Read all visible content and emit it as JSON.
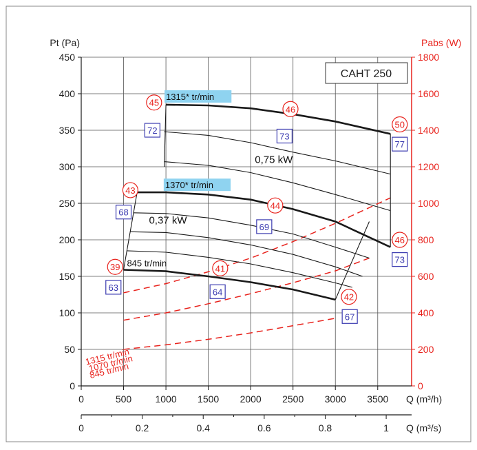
{
  "chart_data": {
    "type": "line",
    "title": "CAHT 250",
    "y_left": {
      "label": "Pt (Pa)",
      "range": [
        0,
        450
      ],
      "ticks": [
        0,
        50,
        100,
        150,
        200,
        250,
        300,
        350,
        400,
        450
      ]
    },
    "y_right": {
      "label": "Pabs (W)",
      "range": [
        0,
        1800
      ],
      "ticks": [
        0,
        200,
        400,
        600,
        800,
        1000,
        1200,
        1400,
        1600,
        1800
      ]
    },
    "x_top": {
      "label": "Q (m³/h)",
      "range": [
        0,
        3900
      ],
      "ticks": [
        0,
        500,
        1000,
        1500,
        2000,
        2500,
        3000,
        3500
      ]
    },
    "x_bottom": {
      "label": "Q (m³/s)",
      "ticks": [
        0,
        0.2,
        0.4,
        0.6,
        0.8,
        1
      ],
      "tick_labels": [
        "0",
        "0.2",
        "0.4",
        "0.6",
        "0.8",
        "1"
      ]
    },
    "grid": true,
    "colors": {
      "pressure": "#1a1a1a",
      "power": "#e8231d",
      "noise_box": "#3b3bb0",
      "speed_highlight": "#8fd3f0"
    },
    "pressure_series": [
      {
        "name": "1315* tr/min",
        "thick": true,
        "x": [
          1000,
          1500,
          2000,
          2500,
          3000,
          3650
        ],
        "y": [
          385,
          384,
          380,
          372,
          362,
          345
        ]
      },
      {
        "name": "",
        "thick": false,
        "x": [
          980,
          1500,
          2000,
          2500,
          3000,
          3650
        ],
        "y": [
          348,
          343,
          333,
          320,
          308,
          290
        ]
      },
      {
        "name": "",
        "thick": false,
        "x": [
          980,
          1500,
          2000,
          2500,
          3000,
          3650
        ],
        "y": [
          307,
          302,
          292,
          278,
          262,
          240
        ]
      },
      {
        "name": "1370* tr/min",
        "thick": true,
        "x": [
          660,
          1000,
          1500,
          2000,
          2500,
          3000,
          3650
        ],
        "y": [
          265,
          265,
          262,
          255,
          242,
          225,
          190
        ]
      },
      {
        "name": "",
        "thick": false,
        "x": [
          620,
          1000,
          1500,
          2000,
          2500,
          3000,
          3400
        ],
        "y": [
          237,
          236,
          230,
          220,
          208,
          190,
          175
        ]
      },
      {
        "name": "",
        "thick": false,
        "x": [
          580,
          1000,
          1500,
          2000,
          2500,
          3000,
          3320
        ],
        "y": [
          211,
          210,
          203,
          193,
          180,
          163,
          150
        ]
      },
      {
        "name": "",
        "thick": false,
        "x": [
          540,
          1000,
          1500,
          2000,
          2500,
          3000,
          3200
        ],
        "y": [
          185,
          183,
          176,
          167,
          155,
          141,
          135
        ]
      },
      {
        "name": "845 tr/min",
        "thick": true,
        "x": [
          500,
          1000,
          1500,
          2000,
          2500,
          3000
        ],
        "y": [
          159,
          157,
          150,
          142,
          132,
          118
        ]
      }
    ],
    "region_boundaries": [
      {
        "x": [
          980,
          1000
        ],
        "y": [
          300,
          385
        ]
      },
      {
        "x": [
          3650,
          3650
        ],
        "y": [
          190,
          345
        ]
      },
      {
        "x": [
          500,
          660
        ],
        "y": [
          159,
          265
        ]
      },
      {
        "x": [
          3000,
          3400
        ],
        "y": [
          118,
          225
        ]
      }
    ],
    "power_series": [
      {
        "name": "1315 tr/min",
        "power_w": {
          "x": [
            500,
            1000,
            1500,
            2000,
            2500,
            3000,
            3650
          ],
          "y": [
            510,
            560,
            625,
            700,
            790,
            890,
            1030
          ]
        }
      },
      {
        "name": "1070 tr/min",
        "power_w": {
          "x": [
            500,
            1000,
            1500,
            2000,
            2500,
            3000,
            3400
          ],
          "y": [
            360,
            400,
            450,
            505,
            565,
            630,
            700
          ]
        }
      },
      {
        "name": "845 tr/min",
        "power_w": {
          "x": [
            500,
            1000,
            1500,
            2000,
            2500,
            3000
          ],
          "y": [
            200,
            225,
            255,
            290,
            330,
            370
          ]
        }
      }
    ],
    "annotations": {
      "speed_labels": [
        {
          "text": "1315* tr/min",
          "x": 1000,
          "y": 385,
          "highlight": true
        },
        {
          "text": "1370* tr/min",
          "x": 990,
          "y": 264,
          "highlight": true
        },
        {
          "text": "845 tr/min",
          "x": 540,
          "y": 157,
          "highlight": false
        }
      ],
      "motor_labels": [
        {
          "text": "0,75 kW",
          "x": 2050,
          "y": 305
        },
        {
          "text": "0,37 kW",
          "x": 800,
          "y": 222
        }
      ],
      "noise_circles": [
        {
          "value": "45",
          "x": 860,
          "y": 388
        },
        {
          "value": "46",
          "x": 2470,
          "y": 379
        },
        {
          "value": "50",
          "x": 3760,
          "y": 358
        },
        {
          "value": "43",
          "x": 580,
          "y": 268
        },
        {
          "value": "44",
          "x": 2290,
          "y": 247
        },
        {
          "value": "46",
          "x": 3760,
          "y": 200
        },
        {
          "value": "39",
          "x": 400,
          "y": 163
        },
        {
          "value": "41",
          "x": 1640,
          "y": 161
        },
        {
          "value": "42",
          "x": 3160,
          "y": 122
        }
      ],
      "noise_boxes": [
        {
          "value": "72",
          "x": 840,
          "y": 350
        },
        {
          "value": "73",
          "x": 2400,
          "y": 342
        },
        {
          "value": "77",
          "x": 3760,
          "y": 331
        },
        {
          "value": "68",
          "x": 500,
          "y": 238
        },
        {
          "value": "69",
          "x": 2160,
          "y": 218
        },
        {
          "value": "73",
          "x": 3760,
          "y": 173
        },
        {
          "value": "63",
          "x": 380,
          "y": 135
        },
        {
          "value": "64",
          "x": 1610,
          "y": 129
        },
        {
          "value": "67",
          "x": 3170,
          "y": 95
        }
      ],
      "power_labels": [
        {
          "text": "1315 tr/min",
          "x": 60,
          "y": 114,
          "angle": -14
        },
        {
          "text": "1070 tr/min",
          "x": 100,
          "y": 77,
          "angle": -14
        },
        {
          "text": "845 tr/min",
          "x": 110,
          "y": 41,
          "angle": -14
        }
      ]
    }
  }
}
